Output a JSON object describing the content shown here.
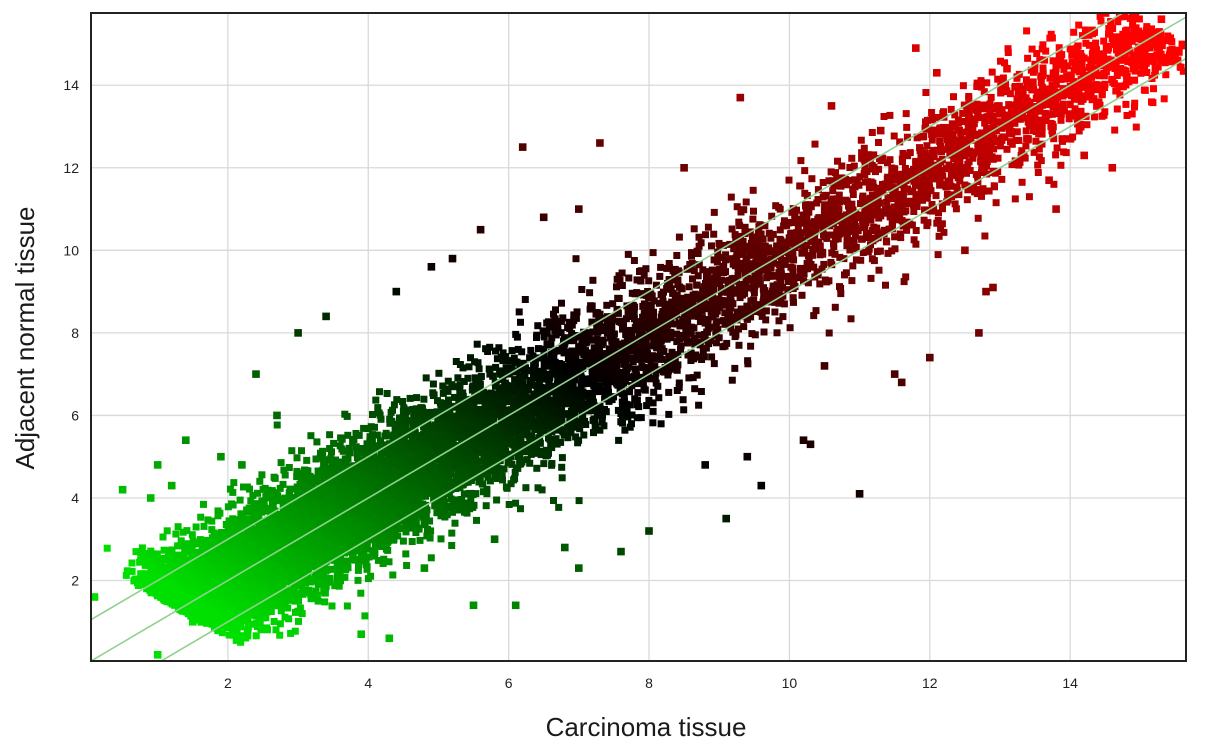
{
  "chart_data": {
    "type": "scatter",
    "title": "",
    "xlabel": "Carcinoma tissue",
    "ylabel": "Adjacent normal tissue",
    "xlim": [
      0.05,
      15.65
    ],
    "ylim": [
      0.05,
      15.75
    ],
    "x_ticks": [
      2,
      4,
      6,
      8,
      10,
      12,
      14
    ],
    "y_ticks": [
      2,
      4,
      6,
      8,
      10,
      12,
      14
    ],
    "grid": true,
    "legend": "none",
    "color_scale": {
      "low": "#00e000",
      "mid": "#000000",
      "high": "#ff0000"
    },
    "guide_lines": [
      {
        "name": "upper fold-change line",
        "intercept": 1,
        "slope": 1
      },
      {
        "name": "identity line",
        "intercept": 0,
        "slope": 1
      },
      {
        "name": "lower fold-change line",
        "intercept": -1,
        "slope": 1
      }
    ],
    "guide_color": "#8fd18f",
    "points_summary": "dense cloud of probe expression values along the diagonal, approx. 1 to 15.5 on both axes",
    "outliers": [
      [
        0.1,
        1.6
      ],
      [
        0.5,
        4.2
      ],
      [
        0.9,
        4.0
      ],
      [
        1.4,
        5.4
      ],
      [
        1.0,
        4.8
      ],
      [
        2.4,
        7.0
      ],
      [
        3.4,
        8.4
      ],
      [
        4.4,
        9.0
      ],
      [
        5.2,
        9.8
      ],
      [
        6.2,
        12.5
      ],
      [
        7.3,
        12.6
      ],
      [
        9.3,
        13.7
      ],
      [
        11.8,
        14.9
      ],
      [
        12.1,
        14.3
      ],
      [
        13.3,
        13.9
      ],
      [
        14.2,
        12.3
      ],
      [
        14.6,
        12.0
      ],
      [
        13.7,
        11.7
      ],
      [
        12.9,
        9.1
      ],
      [
        12.0,
        7.4
      ],
      [
        11.6,
        6.8
      ],
      [
        11.0,
        4.1
      ],
      [
        9.6,
        4.3
      ],
      [
        10.2,
        5.4
      ],
      [
        6.1,
        1.4
      ],
      [
        5.5,
        1.4
      ],
      [
        4.3,
        0.6
      ],
      [
        3.9,
        0.7
      ],
      [
        1.0,
        0.2
      ],
      [
        7.0,
        2.3
      ],
      [
        7.6,
        2.7
      ],
      [
        8.0,
        3.2
      ],
      [
        9.1,
        3.5
      ],
      [
        10.3,
        5.3
      ],
      [
        10.5,
        7.2
      ],
      [
        11.5,
        7.0
      ],
      [
        12.7,
        8.0
      ],
      [
        12.8,
        9.0
      ],
      [
        6.5,
        10.8
      ],
      [
        7.0,
        11.0
      ],
      [
        5.6,
        10.5
      ],
      [
        2.7,
        6.0
      ],
      [
        1.2,
        4.3
      ],
      [
        0.8,
        2.5
      ],
      [
        1.5,
        1.0
      ],
      [
        2.5,
        1.1
      ],
      [
        8.5,
        12.0
      ],
      [
        10.6,
        13.5
      ],
      [
        11.3,
        12.9
      ],
      [
        14.9,
        14.4
      ],
      [
        15.3,
        15.6
      ],
      [
        13.8,
        11.0
      ],
      [
        12.5,
        10.0
      ],
      [
        3.0,
        8.0
      ],
      [
        4.9,
        9.6
      ],
      [
        8.8,
        4.8
      ],
      [
        9.4,
        5.0
      ],
      [
        13.1,
        14.4
      ],
      [
        14.0,
        13.3
      ],
      [
        6.8,
        2.8
      ],
      [
        5.8,
        3.0
      ],
      [
        4.8,
        2.3
      ],
      [
        3.6,
        2.0
      ],
      [
        2.2,
        4.8
      ],
      [
        1.9,
        5.0
      ]
    ]
  }
}
